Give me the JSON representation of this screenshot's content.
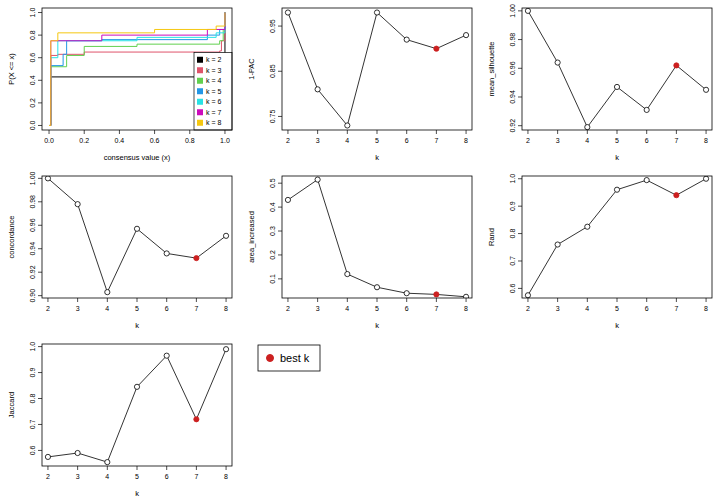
{
  "chart_data": [
    {
      "type": "step",
      "x_label": "consensus value (x)",
      "y_label": "P(X <= x)",
      "xlim": [
        -0.04,
        1.04
      ],
      "ylim": [
        -0.04,
        1.04
      ],
      "xticks": [
        {
          "value": 0,
          "label": "0.0"
        },
        0.2,
        0.4,
        0.6,
        0.8,
        {
          "value": 1,
          "label": "1.0"
        }
      ],
      "yticks": [
        {
          "value": 0,
          "label": "0.0"
        },
        0.2,
        0.4,
        0.6,
        0.8,
        {
          "value": 1,
          "label": "1.0"
        }
      ],
      "legend": "bottom-right",
      "series": [
        {
          "name": "k = 2",
          "color": "#000000",
          "x": [
            0,
            0.01,
            0.99,
            1
          ],
          "values": [
            0,
            0.43,
            0.43,
            1
          ]
        },
        {
          "name": "k = 3",
          "color": "#DF536B",
          "x": [
            0,
            0.01,
            0.05,
            0.2,
            0.97,
            0.98,
            1
          ],
          "values": [
            0,
            0.62,
            0.63,
            0.65,
            0.66,
            0.75,
            1
          ]
        },
        {
          "name": "k = 4",
          "color": "#61D04F",
          "x": [
            0,
            0.01,
            0.1,
            0.2,
            0.5,
            0.97,
            0.99,
            1
          ],
          "values": [
            0,
            0.52,
            0.62,
            0.7,
            0.72,
            0.75,
            0.85,
            1
          ]
        },
        {
          "name": "k = 5",
          "color": "#2297E6",
          "x": [
            0,
            0.01,
            0.08,
            0.1,
            0.3,
            0.9,
            0.97,
            1
          ],
          "values": [
            0,
            0.53,
            0.63,
            0.75,
            0.76,
            0.8,
            0.85,
            1
          ]
        },
        {
          "name": "k = 6",
          "color": "#28E2E5",
          "x": [
            0,
            0.01,
            0.05,
            0.5,
            0.95,
            1
          ],
          "values": [
            0,
            0.6,
            0.75,
            0.78,
            0.82,
            1
          ]
        },
        {
          "name": "k = 7",
          "color": "#CD0BBC",
          "x": [
            0,
            0.01,
            0.3,
            0.9,
            1
          ],
          "values": [
            0,
            0.75,
            0.8,
            0.85,
            1
          ]
        },
        {
          "name": "k = 8",
          "color": "#F5C710",
          "x": [
            0,
            0.01,
            0.05,
            0.6,
            0.95,
            1
          ],
          "values": [
            0,
            0.75,
            0.82,
            0.85,
            0.88,
            1
          ]
        }
      ]
    },
    {
      "type": "line",
      "x_label": "k",
      "y_label": "1-PAC",
      "color": "#000000",
      "x": [
        2,
        3,
        4,
        5,
        6,
        7,
        8
      ],
      "values": [
        0.98,
        0.81,
        0.73,
        0.98,
        0.92,
        0.9,
        0.93
      ],
      "colors": [
        "#ffffff",
        "#ffffff",
        "#ffffff",
        "#ffffff",
        "#ffffff",
        "#cc2020",
        "#ffffff"
      ],
      "xlim": [
        1.8,
        8.2
      ],
      "ylim": [
        0.72,
        0.99
      ],
      "xticks": [
        2,
        3,
        4,
        5,
        6,
        7,
        8
      ],
      "yticks": [
        0.75,
        0.85,
        0.95
      ]
    },
    {
      "type": "line",
      "x_label": "k",
      "y_label": "mean_silhouette",
      "color": "#000000",
      "x": [
        2,
        3,
        4,
        5,
        6,
        7,
        8
      ],
      "values": [
        1.0,
        0.964,
        0.919,
        0.947,
        0.931,
        0.962,
        0.945
      ],
      "colors": [
        "#ffffff",
        "#ffffff",
        "#ffffff",
        "#ffffff",
        "#ffffff",
        "#cc2020",
        "#ffffff"
      ],
      "xlim": [
        1.8,
        8.2
      ],
      "ylim": [
        0.917,
        1.002
      ],
      "xticks": [
        2,
        3,
        4,
        5,
        6,
        7,
        8
      ],
      "yticks": [
        0.92,
        0.94,
        0.96,
        0.98,
        {
          "value": 1,
          "label": "1.00"
        }
      ]
    },
    {
      "type": "line",
      "x_label": "k",
      "y_label": "concordance",
      "color": "#000000",
      "x": [
        2,
        3,
        4,
        5,
        6,
        7,
        8
      ],
      "values": [
        1.0,
        0.978,
        0.903,
        0.957,
        0.936,
        0.932,
        0.951
      ],
      "colors": [
        "#ffffff",
        "#ffffff",
        "#ffffff",
        "#ffffff",
        "#ffffff",
        "#cc2020",
        "#ffffff"
      ],
      "xlim": [
        1.8,
        8.2
      ],
      "ylim": [
        0.898,
        1.002
      ],
      "xticks": [
        2,
        3,
        4,
        5,
        6,
        7,
        8
      ],
      "yticks": [
        {
          "value": 0.9,
          "label": "0.90"
        },
        0.92,
        0.94,
        0.96,
        0.98,
        {
          "value": 1,
          "label": "1.00"
        }
      ]
    },
    {
      "type": "line",
      "x_label": "k",
      "y_label": "area_increased",
      "color": "#000000",
      "x": [
        2,
        3,
        4,
        5,
        6,
        7,
        8
      ],
      "values": [
        0.43,
        0.515,
        0.12,
        0.065,
        0.04,
        0.035,
        0.025
      ],
      "colors": [
        "#ffffff",
        "#ffffff",
        "#ffffff",
        "#ffffff",
        "#ffffff",
        "#cc2020",
        "#ffffff"
      ],
      "xlim": [
        1.8,
        8.2
      ],
      "ylim": [
        0.02,
        0.53
      ],
      "xticks": [
        2,
        3,
        4,
        5,
        6,
        7,
        8
      ],
      "yticks": [
        0.1,
        0.2,
        0.3,
        0.4,
        0.5
      ]
    },
    {
      "type": "line",
      "x_label": "k",
      "y_label": "Rand",
      "color": "#000000",
      "x": [
        2,
        3,
        4,
        5,
        6,
        7,
        8
      ],
      "values": [
        0.575,
        0.76,
        0.825,
        0.96,
        0.995,
        0.94,
        1.0
      ],
      "colors": [
        "#ffffff",
        "#ffffff",
        "#ffffff",
        "#ffffff",
        "#ffffff",
        "#cc2020",
        "#ffffff"
      ],
      "xlim": [
        1.8,
        8.2
      ],
      "ylim": [
        0.565,
        1.01
      ],
      "xticks": [
        2,
        3,
        4,
        5,
        6,
        7,
        8
      ],
      "yticks": [
        0.6,
        0.7,
        0.8,
        0.9,
        {
          "value": 1,
          "label": "1.0"
        }
      ]
    },
    {
      "type": "line",
      "x_label": "k",
      "y_label": "Jaccard",
      "color": "#000000",
      "x": [
        2,
        3,
        4,
        5,
        6,
        7,
        8
      ],
      "values": [
        0.575,
        0.59,
        0.555,
        0.845,
        0.965,
        0.72,
        0.99
      ],
      "colors": [
        "#ffffff",
        "#ffffff",
        "#ffffff",
        "#ffffff",
        "#ffffff",
        "#cc2020",
        "#ffffff"
      ],
      "xlim": [
        1.8,
        8.2
      ],
      "ylim": [
        0.54,
        1.01
      ],
      "xticks": [
        2,
        3,
        4,
        5,
        6,
        7,
        8
      ],
      "yticks": [
        0.6,
        0.7,
        0.8,
        0.9,
        {
          "value": 1,
          "label": "1.0"
        }
      ]
    },
    {
      "type": "legend",
      "series": [
        {
          "name": "best k",
          "color": "#cc2020"
        }
      ]
    }
  ]
}
